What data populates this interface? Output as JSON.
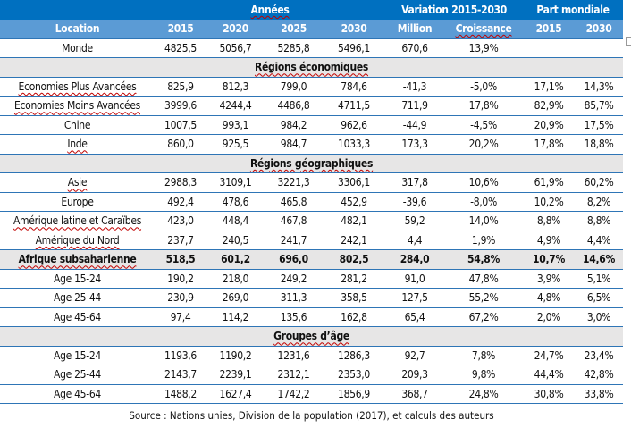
{
  "header": {
    "group_years": "Années",
    "group_variation": "Variation 2015-2030",
    "group_share": "Part mondiale",
    "columns": [
      "Location",
      "2015",
      "2020",
      "2025",
      "2030",
      "Million",
      "Croissance",
      "2015",
      "2030"
    ]
  },
  "rows": [
    {
      "type": "data",
      "cells": [
        "Monde",
        "4825,5",
        "5056,7",
        "5285,8",
        "5496,1",
        "670,6",
        "13,9%",
        "",
        ""
      ]
    },
    {
      "type": "section",
      "label": "Régions économiques"
    },
    {
      "type": "data",
      "cells": [
        "Economies Plus Avancées",
        "825,9",
        "812,3",
        "799,0",
        "784,6",
        "-41,3",
        "-5,0%",
        "17,1%",
        "14,3%"
      ]
    },
    {
      "type": "data",
      "cells": [
        "Economies Moins Avancées",
        "3999,6",
        "4244,4",
        "4486,8",
        "4711,5",
        "711,9",
        "17,8%",
        "82,9%",
        "85,7%"
      ]
    },
    {
      "type": "data",
      "cells": [
        "Chine",
        "1007,5",
        "993,1",
        "984,2",
        "962,6",
        "-44,9",
        "-4,5%",
        "20,9%",
        "17,5%"
      ]
    },
    {
      "type": "data",
      "cells": [
        "Inde",
        "860,0",
        "925,5",
        "984,7",
        "1033,3",
        "173,3",
        "20,2%",
        "17,8%",
        "18,8%"
      ]
    },
    {
      "type": "section",
      "label": "Régions géographiques"
    },
    {
      "type": "data",
      "cells": [
        "Asie",
        "2988,3",
        "3109,1",
        "3221,3",
        "3306,1",
        "317,8",
        "10,6%",
        "61,9%",
        "60,2%"
      ]
    },
    {
      "type": "data",
      "cells": [
        "Europe",
        "492,4",
        "478,6",
        "465,8",
        "452,9",
        "-39,6",
        "-8,0%",
        "10,2%",
        "8,2%"
      ]
    },
    {
      "type": "data",
      "cells": [
        "Amérique latine et Caraïbes",
        "423,0",
        "448,4",
        "467,8",
        "482,1",
        "59,2",
        "14,0%",
        "8,8%",
        "8,8%"
      ]
    },
    {
      "type": "data",
      "cells": [
        "Amérique du Nord",
        "237,7",
        "240,5",
        "241,7",
        "242,1",
        "4,4",
        "1,9%",
        "4,9%",
        "4,4%"
      ]
    },
    {
      "type": "highlight",
      "cells": [
        "Afrique subsaharienne",
        "518,5",
        "601,2",
        "696,0",
        "802,5",
        "284,0",
        "54,8%",
        "10,7%",
        "14,6%"
      ]
    },
    {
      "type": "data",
      "cells": [
        "Age 15-24",
        "190,2",
        "218,0",
        "249,2",
        "281,2",
        "91,0",
        "47,8%",
        "3,9%",
        "5,1%"
      ]
    },
    {
      "type": "data",
      "cells": [
        "Age 25-44",
        "230,9",
        "269,0",
        "311,3",
        "358,5",
        "127,5",
        "55,2%",
        "4,8%",
        "6,5%"
      ]
    },
    {
      "type": "data",
      "cells": [
        "Age 45-64",
        "97,4",
        "114,2",
        "135,6",
        "162,8",
        "65,4",
        "67,2%",
        "2,0%",
        "3,0%"
      ]
    },
    {
      "type": "section",
      "label": "Groupes d’âge"
    },
    {
      "type": "data",
      "cells": [
        "Age 15-24",
        "1193,6",
        "1190,2",
        "1231,6",
        "1286,3",
        "92,7",
        "7,8%",
        "24,7%",
        "23,4%"
      ]
    },
    {
      "type": "data",
      "cells": [
        "Age 25-44",
        "2143,7",
        "2239,1",
        "2312,1",
        "2353,0",
        "209,3",
        "9,8%",
        "44,4%",
        "42,8%"
      ]
    },
    {
      "type": "data",
      "cells": [
        "Age 45-64",
        "1488,2",
        "1627,4",
        "1742,2",
        "1856,9",
        "368,7",
        "24,8%",
        "30,8%",
        "33,8%"
      ]
    }
  ],
  "source": "Source : Nations unies, Division de la population (2017), et calculs des auteurs"
}
